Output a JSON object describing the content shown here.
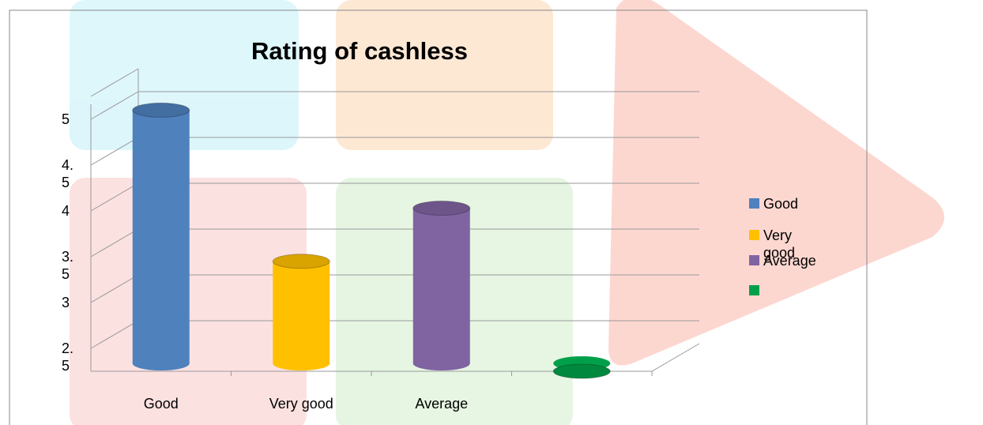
{
  "chart_data": {
    "type": "bar3d",
    "title": "Rating of cashless",
    "categories": [
      "Good",
      "Very good",
      "Average",
      null
    ],
    "values": [
      5.1,
      3.45,
      4.03,
      2.25
    ],
    "colors": [
      "#4f81bd",
      "#ffc000",
      "#8064a2",
      "#00a04a"
    ],
    "ylim": [
      2.25,
      5.25
    ],
    "yticks": [
      2.5,
      3,
      3.5,
      4,
      4.5,
      5
    ],
    "grid": true
  }
}
